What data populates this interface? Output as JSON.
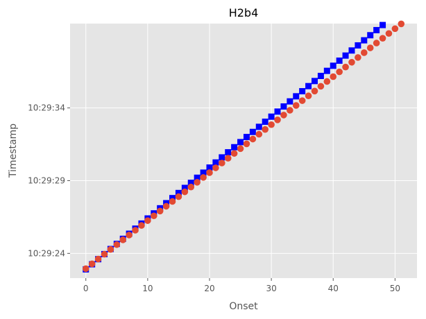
{
  "chart_data": {
    "type": "scatter",
    "title": "H2b4",
    "xlabel": "Onset",
    "ylabel": "Timestamp",
    "xlim": [
      -2.55,
      53.55
    ],
    "ylim": [
      "10:29:22.3",
      "10:29:39.8"
    ],
    "x_ticks": [
      0,
      10,
      20,
      30,
      40,
      50
    ],
    "y_ticks": [
      "10:29:24",
      "10:29:29",
      "10:29:34"
    ],
    "grid": true,
    "legend": "none",
    "background": "#e5e5e5",
    "series": [
      {
        "marker": "square",
        "color": "#0000ff",
        "x": [
          0,
          1,
          2,
          3,
          4,
          5,
          6,
          7,
          8,
          9,
          10,
          11,
          12,
          13,
          14,
          15,
          16,
          17,
          18,
          19,
          20,
          21,
          22,
          23,
          24,
          25,
          26,
          27,
          28,
          29,
          30,
          31,
          32,
          33,
          34,
          35,
          36,
          37,
          38,
          39,
          40,
          41,
          42,
          43,
          44,
          45,
          46,
          47,
          48
        ],
        "y": [
          "10:29:22.9",
          "10:29:23.25",
          "10:29:23.6",
          "10:29:23.95",
          "10:29:24.3",
          "10:29:24.65",
          "10:29:25.0",
          "10:29:25.35",
          "10:29:25.7",
          "10:29:26.05",
          "10:29:26.4",
          "10:29:26.75",
          "10:29:27.1",
          "10:29:27.45",
          "10:29:27.8",
          "10:29:28.15",
          "10:29:28.5",
          "10:29:28.85",
          "10:29:29.2",
          "10:29:29.55",
          "10:29:29.9",
          "10:29:30.25",
          "10:29:30.6",
          "10:29:30.95",
          "10:29:31.3",
          "10:29:31.65",
          "10:29:32.0",
          "10:29:32.35",
          "10:29:32.7",
          "10:29:33.05",
          "10:29:33.4",
          "10:29:33.75",
          "10:29:34.1",
          "10:29:34.45",
          "10:29:34.8",
          "10:29:35.15",
          "10:29:35.5",
          "10:29:35.85",
          "10:29:36.2",
          "10:29:36.55",
          "10:29:36.9",
          "10:29:37.25",
          "10:29:37.6",
          "10:29:37.95",
          "10:29:38.3",
          "10:29:38.65",
          "10:29:39.0",
          "10:29:39.35",
          "10:29:39.7"
        ]
      },
      {
        "marker": "circle",
        "color": "#e24a33",
        "x": [
          0,
          1,
          2,
          3,
          4,
          5,
          6,
          7,
          8,
          9,
          10,
          11,
          12,
          13,
          14,
          15,
          16,
          17,
          18,
          19,
          20,
          21,
          22,
          23,
          24,
          25,
          26,
          27,
          28,
          29,
          30,
          31,
          32,
          33,
          34,
          35,
          36,
          37,
          38,
          39,
          40,
          41,
          42,
          43,
          44,
          45,
          46,
          47,
          48,
          49,
          50,
          51
        ],
        "y": [
          "10:29:22.95",
          "10:29:23.28",
          "10:29:23.61",
          "10:29:23.94",
          "10:29:24.27",
          "10:29:24.6",
          "10:29:24.93",
          "10:29:25.26",
          "10:29:25.59",
          "10:29:25.92",
          "10:29:26.25",
          "10:29:26.58",
          "10:29:26.91",
          "10:29:27.24",
          "10:29:27.57",
          "10:29:27.9",
          "10:29:28.23",
          "10:29:28.56",
          "10:29:28.89",
          "10:29:29.22",
          "10:29:29.55",
          "10:29:29.88",
          "10:29:30.21",
          "10:29:30.54",
          "10:29:30.87",
          "10:29:31.2",
          "10:29:31.53",
          "10:29:31.86",
          "10:29:32.19",
          "10:29:32.52",
          "10:29:32.85",
          "10:29:33.18",
          "10:29:33.51",
          "10:29:33.84",
          "10:29:34.17",
          "10:29:34.5",
          "10:29:34.83",
          "10:29:35.16",
          "10:29:35.49",
          "10:29:35.82",
          "10:29:36.15",
          "10:29:36.48",
          "10:29:36.81",
          "10:29:37.14",
          "10:29:37.47",
          "10:29:37.8",
          "10:29:38.13",
          "10:29:38.46",
          "10:29:38.79",
          "10:29:39.12",
          "10:29:39.45",
          "10:29:39.78"
        ]
      }
    ]
  }
}
